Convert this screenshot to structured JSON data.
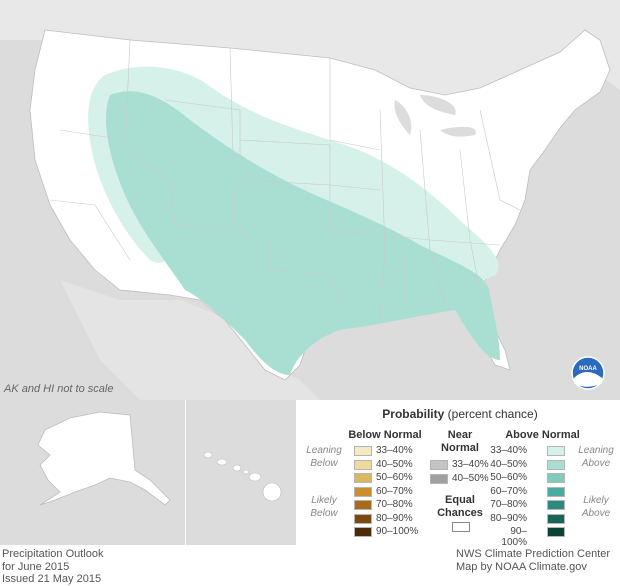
{
  "map": {
    "scale_note": "AK and HI not to scale",
    "logo_text": "NOAA"
  },
  "legend": {
    "title_bold": "Probability",
    "title_rest": "(percent chance)",
    "below_header": "Below Normal",
    "near_header_1": "Near",
    "near_header_2": "Normal",
    "above_header": "Above Normal",
    "leaning_below": [
      "Leaning",
      "Below"
    ],
    "likely_below": [
      "Likely",
      "Below"
    ],
    "leaning_above": [
      "Leaning",
      "Above"
    ],
    "likely_above": [
      "Likely",
      "Above"
    ],
    "equal_chances_1": "Equal",
    "equal_chances_2": "Chances",
    "below_items": [
      {
        "label": "33–40%",
        "color": "#f7e8bf"
      },
      {
        "label": "40–50%",
        "color": "#f0d99b"
      },
      {
        "label": "50–60%",
        "color": "#dbb663"
      },
      {
        "label": "60–70%",
        "color": "#c98f2e"
      },
      {
        "label": "70–80%",
        "color": "#a86a1b"
      },
      {
        "label": "80–90%",
        "color": "#7a4a11"
      },
      {
        "label": "90–100%",
        "color": "#4e2b07"
      }
    ],
    "near_items": [
      {
        "label": "33–40%",
        "color": "#c4c4c4"
      },
      {
        "label": "40–50%",
        "color": "#a0a0a0"
      }
    ],
    "above_items": [
      {
        "label": "33–40%",
        "color": "#d6f0ea"
      },
      {
        "label": "40–50%",
        "color": "#a9dfd3"
      },
      {
        "label": "50–60%",
        "color": "#7fcbbd"
      },
      {
        "label": "60–70%",
        "color": "#48ad9e"
      },
      {
        "label": "70–80%",
        "color": "#2a8a7b"
      },
      {
        "label": "80–90%",
        "color": "#176657"
      },
      {
        "label": "90–100%",
        "color": "#0b4236"
      }
    ]
  },
  "footer": {
    "left_1": "Precipitation Outlook",
    "left_2": "for June 2015",
    "left_3": "Issued 21 May 2015",
    "right_1": "NWS Climate Prediction Center",
    "right_2": "Map by NOAA Climate.gov"
  }
}
